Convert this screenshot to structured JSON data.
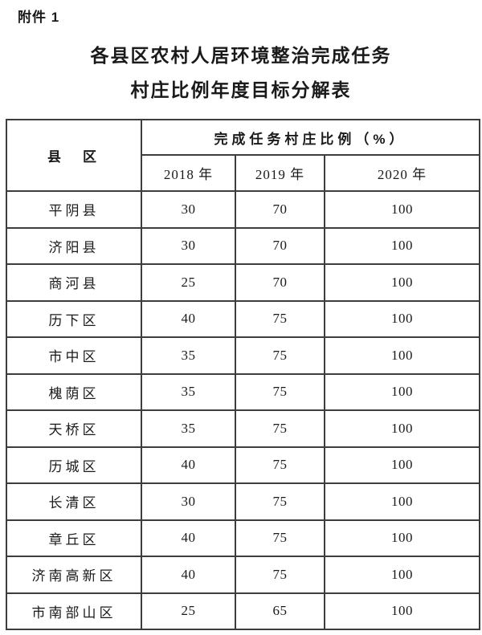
{
  "page": {
    "attachment_label": "附件 1",
    "title_line1": "各县区农村人居环境整治完成任务",
    "title_line2": "村庄比例年度目标分解表"
  },
  "table": {
    "corner_header": "县　区",
    "group_header": "完成任务村庄比例（%）",
    "year_headers": [
      "2018 年",
      "2019 年",
      "2020 年"
    ],
    "rows": [
      {
        "district": "平阴县",
        "y2018": "30",
        "y2019": "70",
        "y2020": "100"
      },
      {
        "district": "济阳县",
        "y2018": "30",
        "y2019": "70",
        "y2020": "100"
      },
      {
        "district": "商河县",
        "y2018": "25",
        "y2019": "70",
        "y2020": "100"
      },
      {
        "district": "历下区",
        "y2018": "40",
        "y2019": "75",
        "y2020": "100"
      },
      {
        "district": "市中区",
        "y2018": "35",
        "y2019": "75",
        "y2020": "100"
      },
      {
        "district": "槐荫区",
        "y2018": "35",
        "y2019": "75",
        "y2020": "100"
      },
      {
        "district": "天桥区",
        "y2018": "35",
        "y2019": "75",
        "y2020": "100"
      },
      {
        "district": "历城区",
        "y2018": "40",
        "y2019": "75",
        "y2020": "100"
      },
      {
        "district": "长清区",
        "y2018": "30",
        "y2019": "75",
        "y2020": "100"
      },
      {
        "district": "章丘区",
        "y2018": "40",
        "y2019": "75",
        "y2020": "100"
      },
      {
        "district": "济南高新区",
        "y2018": "40",
        "y2019": "75",
        "y2020": "100"
      },
      {
        "district": "市南部山区",
        "y2018": "25",
        "y2019": "65",
        "y2020": "100"
      }
    ]
  },
  "colors": {
    "background": "#ffffff",
    "text": "#1a1a1a",
    "border": "#3d3d3d"
  }
}
